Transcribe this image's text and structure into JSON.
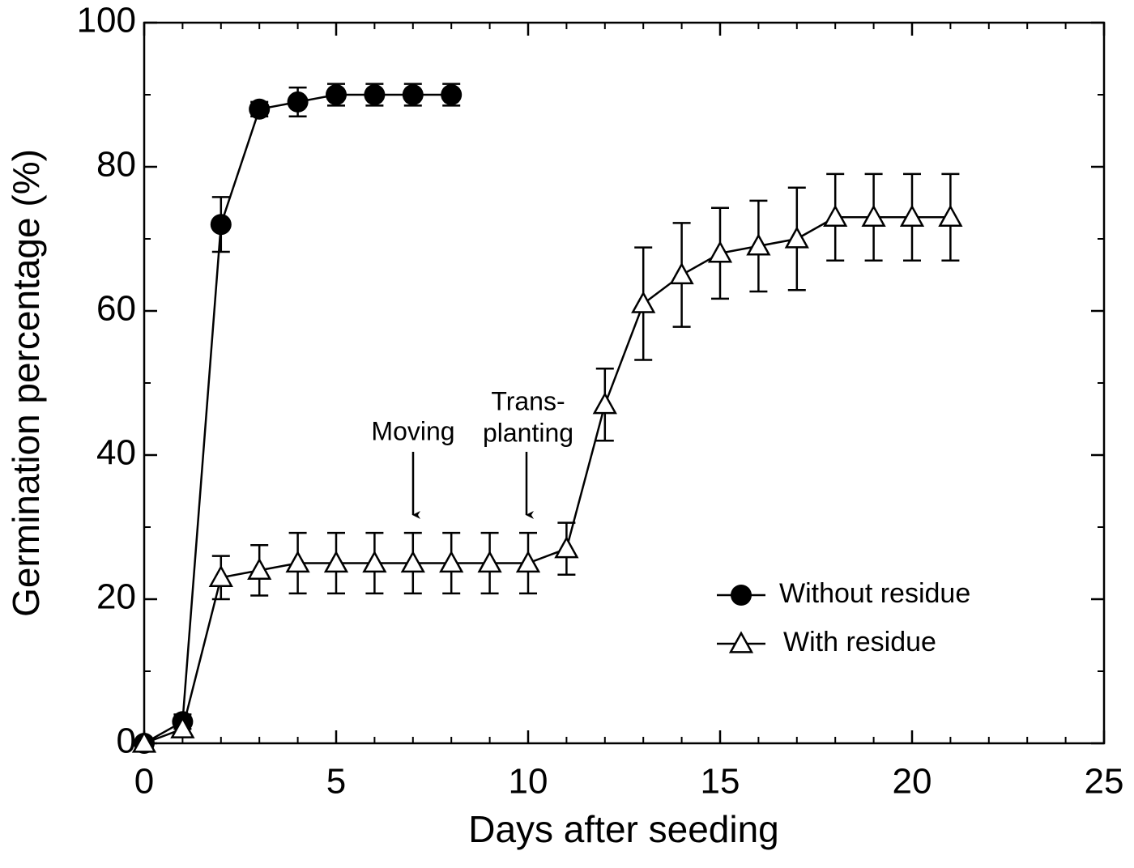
{
  "chart_data": {
    "type": "line",
    "xlabel": "Days after seeding",
    "ylabel": "Germination percentage (%)",
    "xlim": [
      0,
      25
    ],
    "xticks": [
      0,
      5,
      10,
      15,
      20,
      25
    ],
    "xminor_step": 1,
    "ylim": [
      0,
      100
    ],
    "yticks": [
      0,
      20,
      40,
      60,
      80,
      100
    ],
    "yminor_step": 10,
    "legend": "lower right",
    "annotations": [
      [
        "Moving"
      ],
      [
        "Trans-",
        "planting"
      ]
    ],
    "series": [
      {
        "name": "Without residue",
        "color": "#000000",
        "marker": "circle",
        "x": [
          0,
          1,
          2,
          3,
          4,
          5,
          6,
          7,
          8
        ],
        "values": [
          0,
          3,
          72,
          88,
          89,
          90,
          90,
          90,
          90
        ],
        "errors": [
          0,
          1,
          3.8,
          1,
          2,
          1.5,
          1.5,
          1.5,
          1.5
        ]
      },
      {
        "name": "With residue",
        "color": "#000000",
        "marker": "triangle",
        "x": [
          0,
          1,
          2,
          3,
          4,
          5,
          6,
          7,
          8,
          9,
          10,
          11,
          12,
          13,
          14,
          15,
          16,
          17,
          18,
          19,
          20,
          21
        ],
        "values": [
          0,
          2,
          23,
          24,
          25,
          25,
          25,
          25,
          25,
          25,
          25,
          27,
          47,
          61,
          65,
          68,
          69,
          70,
          73,
          73,
          73,
          73
        ],
        "errors": [
          0,
          1,
          3,
          3.5,
          4.2,
          4.2,
          4.2,
          4.2,
          4.2,
          4.2,
          4.2,
          3.6,
          5,
          7.8,
          7.2,
          6.3,
          6.3,
          7.1,
          6,
          6,
          6,
          6
        ]
      }
    ]
  }
}
